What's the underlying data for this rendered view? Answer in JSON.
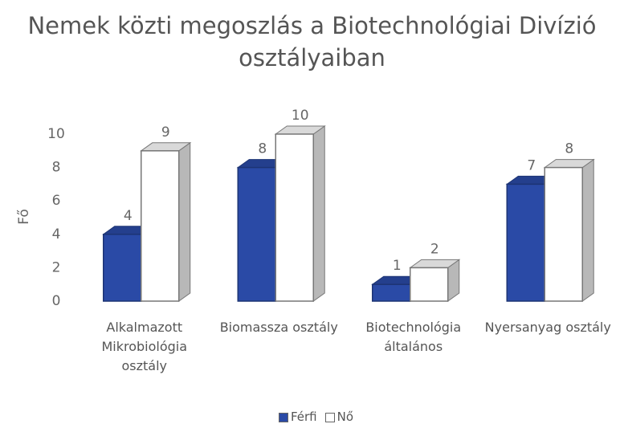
{
  "chart_data": {
    "type": "bar3d",
    "title": "Nemek közti megoszlás a Biotechnológiai Divízió osztályaiban",
    "y_label": "Fő",
    "categories": [
      "Alkalmazott Mikrobiológia osztály",
      "Biomassza osztály",
      "Biotechnológia általános",
      "Nyersanyag osztály"
    ],
    "series": [
      {
        "name": "Férfi",
        "color": "#2a4aa6",
        "values": [
          4,
          8,
          1,
          7
        ]
      },
      {
        "name": "Nő",
        "color": "#ffffff",
        "values": [
          9,
          10,
          2,
          8
        ]
      }
    ],
    "ylim": [
      0,
      10
    ],
    "yticks": [
      0,
      2,
      4,
      6,
      8,
      10
    ],
    "grid": false,
    "legend": "bottom"
  }
}
